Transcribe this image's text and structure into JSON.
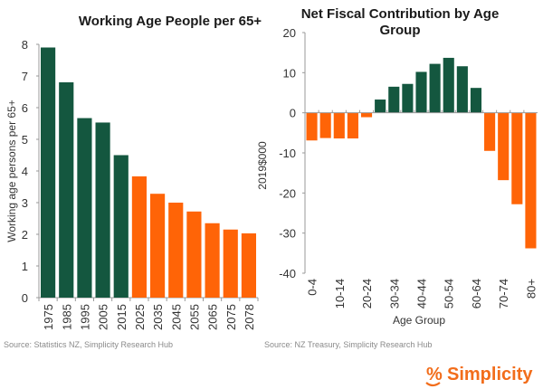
{
  "chart_data": [
    {
      "type": "bar",
      "title": "Working Age People per 65+",
      "xlabel": "",
      "ylabel": "Working age persons per 65+",
      "ylim": [
        0,
        8
      ],
      "yticks": [
        0,
        1,
        2,
        3,
        4,
        5,
        6,
        7,
        8
      ],
      "categories": [
        "1975",
        "1985",
        "1995",
        "2005",
        "2015",
        "2025",
        "2035",
        "2045",
        "2055",
        "2065",
        "2075",
        "2078"
      ],
      "values": [
        7.9,
        6.8,
        5.67,
        5.53,
        4.5,
        3.83,
        3.28,
        3.0,
        2.72,
        2.35,
        2.15,
        2.03
      ],
      "colors": [
        "#14573f",
        "#14573f",
        "#14573f",
        "#14573f",
        "#14573f",
        "#ff6407",
        "#ff6407",
        "#ff6407",
        "#ff6407",
        "#ff6407",
        "#ff6407",
        "#ff6407"
      ],
      "grid": false,
      "source": "Source: Statistics NZ, Simplicity Research Hub"
    },
    {
      "type": "bar",
      "title_lines": [
        "Net Fiscal Contribution by Age",
        "Group"
      ],
      "xlabel": "Age Group",
      "ylabel": "2019$000",
      "ylim": [
        -40,
        20
      ],
      "yticks": [
        20,
        10,
        0,
        -10,
        -20,
        -30,
        -40
      ],
      "categories": [
        "0-4",
        "5-9",
        "10-14",
        "15-19",
        "20-24",
        "25-29",
        "30-34",
        "35-39",
        "40-44",
        "45-49",
        "50-54",
        "55-59",
        "60-64",
        "65-69",
        "70-74",
        "75-79",
        "80+"
      ],
      "shown_tick_labels": [
        "0-4",
        "10-14",
        "20-24",
        "30-34",
        "40-44",
        "50-54",
        "60-64",
        "70-74",
        "80+"
      ],
      "values": [
        -6.9,
        -6.3,
        -6.4,
        -6.4,
        -1.1,
        3.3,
        6.5,
        7.2,
        10.2,
        12.2,
        13.7,
        11.6,
        6.2,
        -9.5,
        -16.8,
        -22.8,
        -33.8
      ],
      "positive_color": "#14573f",
      "negative_color": "#ff6407",
      "grid": false,
      "source": "Source: NZ Treasury, Simplicity Research Hub"
    }
  ],
  "brand": {
    "symbol": "%",
    "name": "Simplicity",
    "color": "#f26d1b"
  }
}
